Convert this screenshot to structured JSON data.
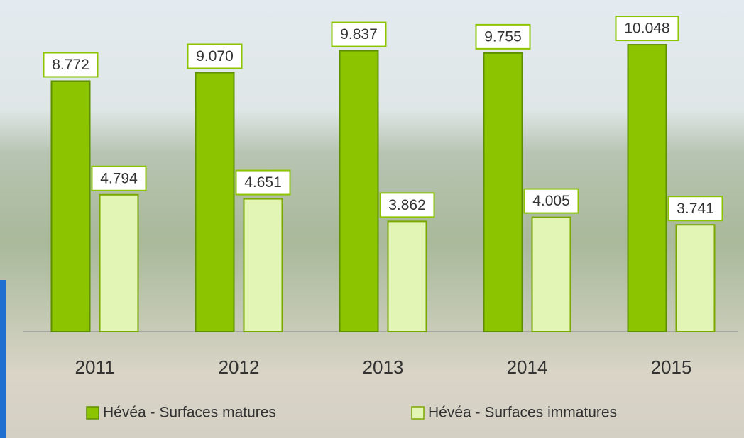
{
  "chart_data": {
    "type": "bar",
    "categories": [
      "2011",
      "2012",
      "2013",
      "2014",
      "2015"
    ],
    "series": [
      {
        "name": "Hévéa - Surfaces matures",
        "color": "#8cc400",
        "values": [
          8772,
          9070,
          9837,
          9755,
          10048
        ],
        "value_labels": [
          "8.772",
          "9.070",
          "9.837",
          "9.755",
          "10.048"
        ]
      },
      {
        "name": "Hévéa - Surfaces immatures",
        "color": "#e2f5b4",
        "values": [
          4794,
          4651,
          3862,
          4005,
          3741
        ],
        "value_labels": [
          "4.794",
          "4.651",
          "3.862",
          "4.005",
          "3.741"
        ]
      }
    ]
  }
}
